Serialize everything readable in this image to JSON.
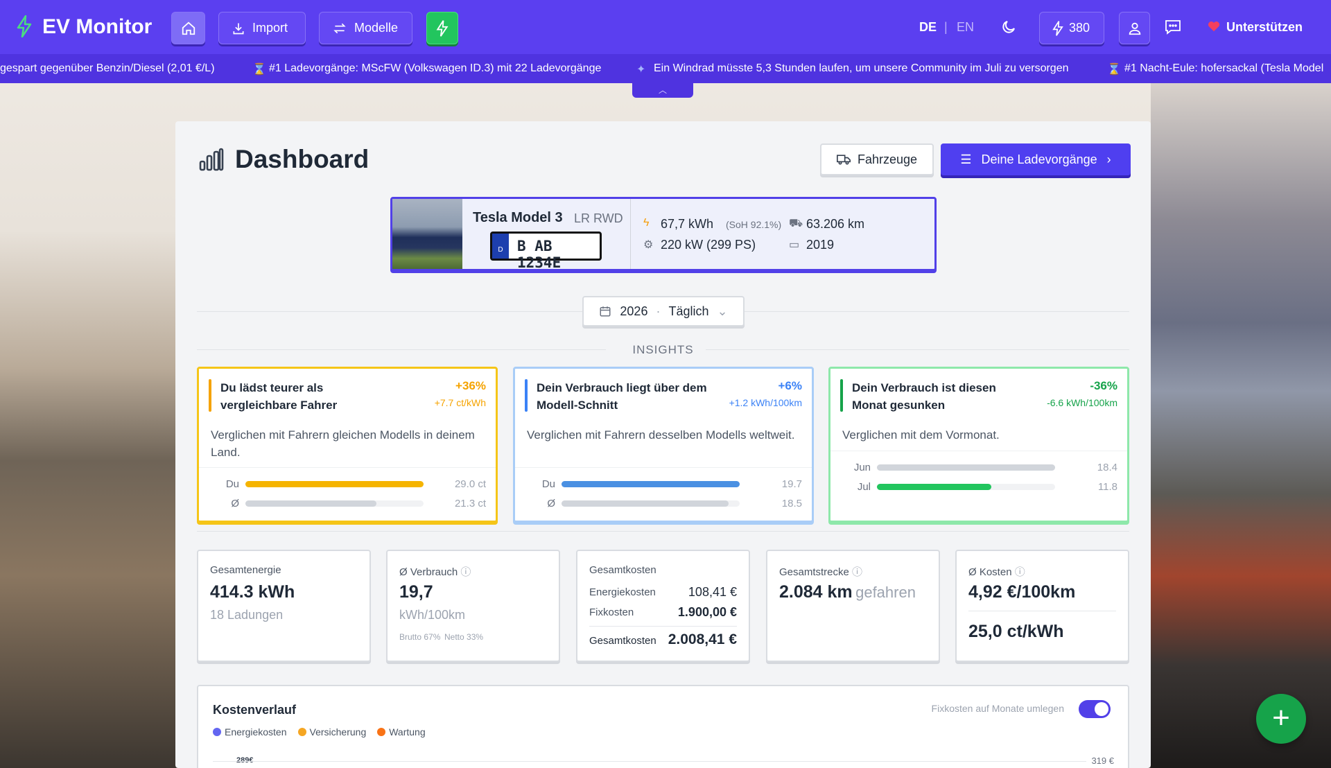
{
  "header": {
    "brand": "EV Monitor",
    "nav": [
      "Import",
      "Modelle"
    ],
    "languages": [
      "DE",
      "EN"
    ],
    "energy_badge": "380",
    "support": "Unterstützen"
  },
  "ticker": [
    "gespart gegenüber Benzin/Diesel (2,01 €/L)",
    "#1 Ladevorgänge: MScFW (Volkswagen ID.3) mit 22 Ladevorgänge",
    "Ein Windrad müsste 5,3 Stunden laufen, um unsere Community im Juli zu versorgen",
    "#1 Nacht-Eule: hofersackal (Tesla Model"
  ],
  "page": {
    "title": "Dashboard",
    "buttons": [
      "Fahrzeuge",
      "Deine Ladevorgänge"
    ]
  },
  "vehicle": {
    "model": "Tesla Model 3",
    "variant": "LR RWD",
    "plate": "B AB 1234E",
    "plate_country": "D",
    "battery": "67,7 kWh",
    "soh": "(SoH 92.1%)",
    "power": "220 kW (299 PS)",
    "mileage": "63.206 km",
    "year": "2019"
  },
  "filter": {
    "year": "2026",
    "interval": "Täglich"
  },
  "insights": {
    "heading": "INSIGHTS",
    "cards": [
      {
        "title": "Du lädst teurer als vergleichbare Fahrer",
        "delta": "+36%",
        "delta_detail": "+7.7 ct/kWh",
        "text": "Verglichen mit Fahrern gleichen Modells in deinem Land.",
        "border": "#f5c518",
        "accent": "#f5a300",
        "rows": [
          {
            "label": "Du",
            "value": 29.0,
            "value_label": "29.0 ct",
            "color": "#f5b400"
          },
          {
            "label": "Ø",
            "value": 21.3,
            "value_label": "21.3 ct",
            "color": "#d1d5db"
          }
        ]
      },
      {
        "title": "Dein Verbrauch liegt über dem Modell-Schnitt",
        "delta": "+6%",
        "delta_detail": "+1.2 kWh/100km",
        "text": "Verglichen mit Fahrern desselben Modells weltweit.",
        "border": "#a9cdf7",
        "accent": "#3b82f6",
        "rows": [
          {
            "label": "Du",
            "value": 19.7,
            "value_label": "19.7",
            "color": "#4a90e2"
          },
          {
            "label": "Ø",
            "value": 18.5,
            "value_label": "18.5",
            "color": "#d1d5db"
          }
        ]
      },
      {
        "title": "Dein Verbrauch ist diesen Monat gesunken",
        "delta": "-36%",
        "delta_detail": "-6.6 kWh/100km",
        "text": "Verglichen mit dem Vormonat.",
        "border": "#8ee8aa",
        "accent": "#16a34a",
        "rows": [
          {
            "label": "Jun",
            "value": 18.4,
            "value_label": "18.4",
            "color": "#d1d5db"
          },
          {
            "label": "Jul",
            "value": 11.8,
            "value_label": "11.8",
            "color": "#22c55e"
          }
        ]
      }
    ]
  },
  "stats": {
    "energy": {
      "label": "Gesamtenergie",
      "value": "414.3 kWh",
      "sub": "18 Ladungen"
    },
    "consumption": {
      "label": "Ø Verbrauch",
      "value": "19,7",
      "unit": "kWh/100km",
      "notes": [
        "Brutto 67%",
        "Netto 33%"
      ]
    },
    "costs": {
      "label": "Gesamtkosten",
      "rows": [
        [
          "Energiekosten",
          "108,41 €"
        ],
        [
          "Fixkosten",
          "1.900,00 €"
        ]
      ],
      "total": [
        "Gesamtkosten",
        "2.008,41 €"
      ]
    },
    "distance": {
      "label": "Gesamtstrecke",
      "value": "2.084 km",
      "suffix": "gefahren"
    },
    "avg_cost": {
      "label": "Ø Kosten",
      "value": "4,92 €/100km",
      "value2": "25,0 ct/kWh"
    }
  },
  "cost_chart": {
    "title": "Kostenverlauf",
    "legend": [
      {
        "name": "Energiekosten",
        "color": "#6366f1"
      },
      {
        "name": "Versicherung",
        "color": "#f5a623"
      },
      {
        "name": "Wartung",
        "color": "#f97316"
      }
    ],
    "toggle_label": "Fixkosten auf Monate umlegen",
    "left_label": "289€",
    "right_label": "319 €"
  }
}
